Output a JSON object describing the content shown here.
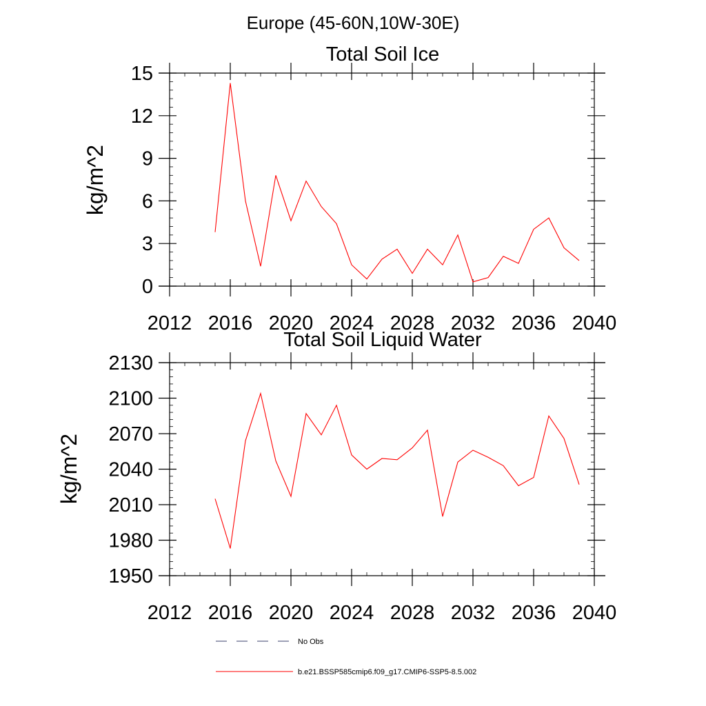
{
  "figure": {
    "suptitle": "Europe (45-60N,10W-30E)"
  },
  "chart_data": [
    {
      "type": "line",
      "title": "Total Soil Ice",
      "xlabel": "",
      "ylabel": "kg/m^2",
      "xlim": [
        2012,
        2040
      ],
      "ylim": [
        0,
        15
      ],
      "xticks": [
        2012,
        2016,
        2020,
        2024,
        2028,
        2032,
        2036,
        2040
      ],
      "yticks": [
        0,
        3,
        6,
        9,
        12,
        15
      ],
      "series": [
        {
          "name": "b.e21.BSSP585cmip6.f09_g17.CMIP6-SSP5-8.5.002",
          "color": "#ff0000",
          "x": [
            2015,
            2016,
            2017,
            2018,
            2019,
            2020,
            2021,
            2022,
            2023,
            2024,
            2025,
            2026,
            2027,
            2028,
            2029,
            2030,
            2031,
            2032,
            2033,
            2034,
            2035,
            2036,
            2037,
            2038,
            2039
          ],
          "y": [
            3.8,
            14.3,
            6.0,
            1.4,
            7.8,
            4.6,
            7.4,
            5.6,
            4.4,
            1.5,
            0.5,
            1.9,
            2.6,
            0.9,
            2.6,
            1.5,
            3.6,
            0.3,
            0.6,
            2.1,
            1.6,
            4.0,
            4.8,
            2.7,
            1.8
          ]
        }
      ]
    },
    {
      "type": "line",
      "title": "Total Soil Liquid Water",
      "xlabel": "",
      "ylabel": "kg/m^2",
      "xlim": [
        2012,
        2040
      ],
      "ylim": [
        1950,
        2130
      ],
      "xticks": [
        2012,
        2016,
        2020,
        2024,
        2028,
        2032,
        2036,
        2040
      ],
      "yticks": [
        1950,
        1980,
        2010,
        2040,
        2070,
        2100,
        2130
      ],
      "series": [
        {
          "name": "b.e21.BSSP585cmip6.f09_g17.CMIP6-SSP5-8.5.002",
          "color": "#ff0000",
          "x": [
            2015,
            2016,
            2017,
            2018,
            2019,
            2020,
            2021,
            2022,
            2023,
            2024,
            2025,
            2026,
            2027,
            2028,
            2029,
            2030,
            2031,
            2032,
            2033,
            2034,
            2035,
            2036,
            2037,
            2038,
            2039
          ],
          "y": [
            2015,
            1973,
            2064,
            2104,
            2047,
            2017,
            2087,
            2069,
            2094,
            2052,
            2040,
            2049,
            2048,
            2058,
            2073,
            2000,
            2046,
            2056,
            2050,
            2043,
            2026,
            2033,
            2085,
            2066,
            2027
          ]
        }
      ]
    }
  ],
  "legend": {
    "placement": "bottom",
    "items": [
      {
        "label": "No Obs",
        "style": "dashed",
        "color": "#3a3f6b"
      },
      {
        "label": "b.e21.BSSP585cmip6.f09_g17.CMIP6-SSP5-8.5.002",
        "style": "solid",
        "color": "#ff0000"
      }
    ]
  }
}
